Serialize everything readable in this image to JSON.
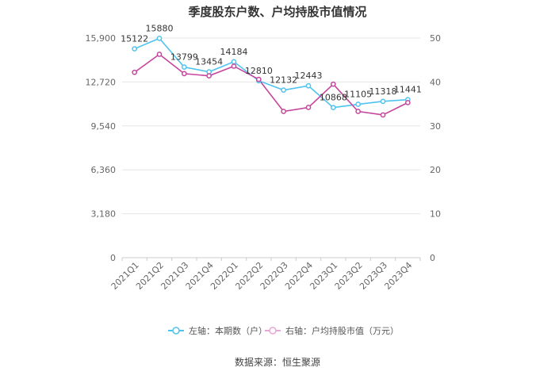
{
  "chart_data": {
    "type": "line",
    "title": "季度股东户数、户均持股市值情况",
    "categories": [
      "2021Q1",
      "2021Q2",
      "2021Q3",
      "2021Q4",
      "2022Q1",
      "2022Q2",
      "2022Q3",
      "2022Q4",
      "2023Q1",
      "2023Q2",
      "2023Q3",
      "2023Q4"
    ],
    "y_left": {
      "ticks": [
        "0",
        "3,180",
        "6,360",
        "9,540",
        "12,720",
        "15,900"
      ],
      "ylim": [
        0,
        15900
      ]
    },
    "y_right": {
      "ticks": [
        "0",
        "10",
        "20",
        "30",
        "40",
        "50"
      ],
      "ylim": [
        0,
        50
      ]
    },
    "series": [
      {
        "name": "左轴：本期数（户）",
        "axis": "left",
        "color": "#4fc3f0",
        "values": [
          15122,
          15880,
          13799,
          13454,
          14184,
          12810,
          12132,
          12443,
          10868,
          11105,
          11318,
          11441
        ],
        "labels": [
          "15122",
          "15880",
          "13799",
          "13454",
          "14184",
          "12810",
          "12132",
          "12443",
          "10868",
          "11105",
          "11318",
          "11441"
        ]
      },
      {
        "name": "右轴：户均持股市值（万元）",
        "axis": "right",
        "color": "#c5459d",
        "values": [
          42.2,
          46.3,
          41.9,
          41.4,
          43.6,
          40.6,
          33.3,
          34.2,
          39.5,
          33.3,
          32.5,
          35.3
        ]
      }
    ],
    "grid": true,
    "legend_position": "bottom"
  },
  "source": "数据来源：恒生聚源"
}
